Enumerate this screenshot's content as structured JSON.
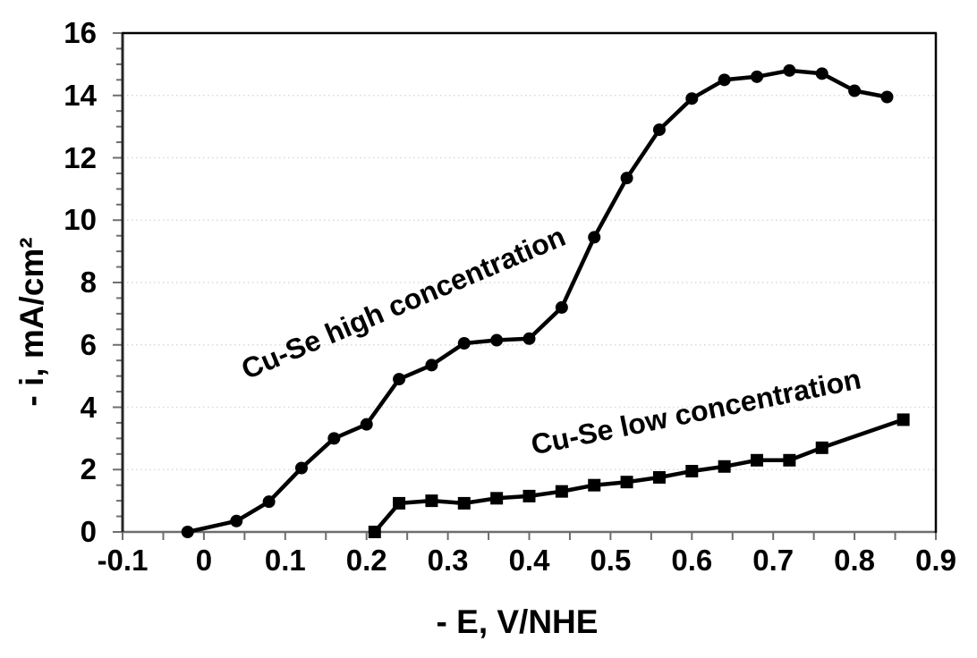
{
  "chart_data": {
    "type": "line",
    "title": "",
    "xlabel": "- E, V/NHE",
    "ylabel": "- i, mA/cm²",
    "xlim": [
      -0.1,
      0.9
    ],
    "ylim": [
      0,
      16
    ],
    "x_tick_values": [
      -0.1,
      0,
      0.1,
      0.2,
      0.3,
      0.4,
      0.5,
      0.6,
      0.7,
      0.8,
      0.9
    ],
    "x_tick_labels": [
      "-0.1",
      "0",
      "0.1",
      "0.2",
      "0.3",
      "0.4",
      "0.5",
      "0.6",
      "0.7",
      "0.8",
      "0.9"
    ],
    "x_minor_tick_step": 0.05,
    "y_tick_values": [
      0,
      2,
      4,
      6,
      8,
      10,
      12,
      14,
      16
    ],
    "y_tick_labels": [
      "0",
      "2",
      "4",
      "6",
      "8",
      "10",
      "12",
      "14",
      "16"
    ],
    "y_minor_tick_step": 0.5,
    "grid": "horizontal dotted gridlines at y = 2,4,6,8,10,12,14",
    "legend_position": "none (inline rotated series labels)",
    "series": [
      {
        "name": "Cu-Se high concentration",
        "marker": "circle",
        "x": [
          -0.02,
          0.04,
          0.08,
          0.12,
          0.16,
          0.2,
          0.24,
          0.28,
          0.32,
          0.36,
          0.4,
          0.44,
          0.48,
          0.52,
          0.56,
          0.6,
          0.64,
          0.68,
          0.72,
          0.76,
          0.8,
          0.84
        ],
        "y": [
          0,
          0.35,
          0.97,
          2.05,
          3.0,
          3.45,
          4.9,
          5.35,
          6.05,
          6.15,
          6.2,
          7.2,
          9.45,
          11.35,
          12.9,
          13.9,
          14.5,
          14.6,
          14.8,
          14.7,
          14.15,
          13.95
        ]
      },
      {
        "name": "Cu-Se low concentration",
        "marker": "square",
        "x": [
          0.21,
          0.24,
          0.28,
          0.32,
          0.36,
          0.4,
          0.44,
          0.48,
          0.52,
          0.56,
          0.6,
          0.64,
          0.68,
          0.72,
          0.76,
          0.86
        ],
        "y": [
          0,
          0.92,
          1.0,
          0.92,
          1.08,
          1.15,
          1.3,
          1.5,
          1.6,
          1.75,
          1.95,
          2.1,
          2.3,
          2.3,
          2.7,
          3.6
        ]
      }
    ],
    "annotations": [
      {
        "text": "Cu-Se high concentration",
        "angle_deg": -23
      },
      {
        "text": "Cu-Se low concentration",
        "angle_deg": -11.5
      }
    ],
    "colors": {
      "series": "#000000",
      "text": "#000000",
      "gridline": "#d9d9d9",
      "axis_line": "#6e6e6e",
      "y_spine": "#262626",
      "plot_border": "#000000",
      "background": "#ffffff"
    }
  }
}
